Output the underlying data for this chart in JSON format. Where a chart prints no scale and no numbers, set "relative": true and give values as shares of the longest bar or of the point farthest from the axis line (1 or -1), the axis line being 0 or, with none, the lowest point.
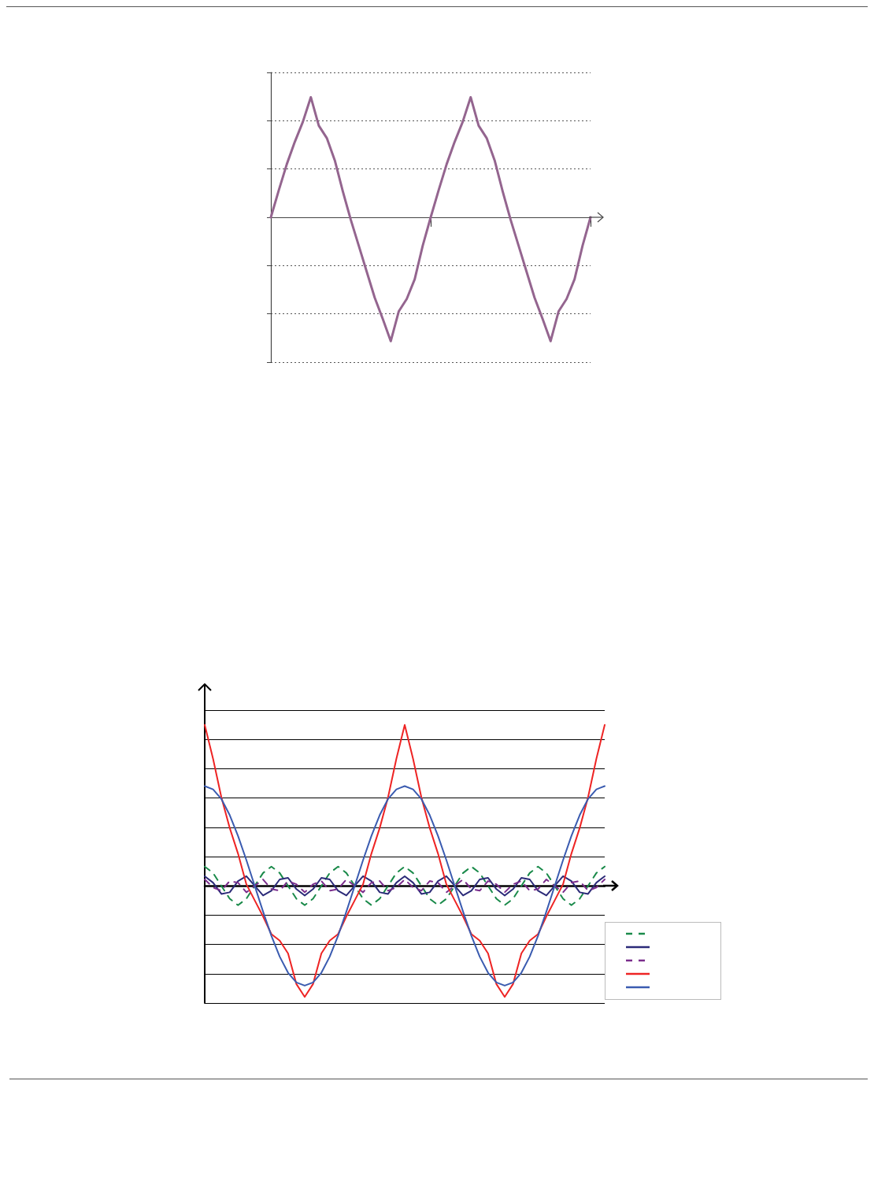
{
  "chart_data": [
    {
      "type": "line",
      "relative": true,
      "grid": "y",
      "marker": "none",
      "line_style": "solid",
      "categories": [
        null,
        null,
        null,
        null,
        null,
        null,
        null,
        null,
        null,
        null,
        null,
        null,
        null,
        null,
        null,
        null,
        null,
        null,
        null,
        null,
        null,
        null,
        null,
        null,
        null,
        null,
        null,
        null,
        null,
        null,
        null,
        null,
        null,
        null,
        null,
        null,
        null,
        null,
        null,
        null,
        null
      ],
      "series": [
        {
          "color": "#94658f",
          "values": [
            0,
            0.22,
            0.43,
            0.61,
            0.77,
            0.97,
            0.74,
            0.64,
            0.46,
            0.21,
            -0.02,
            -0.23,
            -0.44,
            -0.65,
            -0.82,
            -1,
            -0.76,
            -0.66,
            -0.5,
            -0.23,
            0,
            0.22,
            0.43,
            0.61,
            0.77,
            0.97,
            0.74,
            0.64,
            0.46,
            0.21,
            -0.02,
            -0.23,
            -0.44,
            -0.65,
            -0.82,
            -1,
            -0.76,
            -0.66,
            -0.5,
            -0.23,
            0
          ]
        }
      ]
    },
    {
      "type": "line",
      "relative": true,
      "grid": "y",
      "marker": "none",
      "categories": [
        null,
        null,
        null,
        null,
        null,
        null,
        null,
        null,
        null,
        null,
        null,
        null,
        null,
        null,
        null,
        null,
        null,
        null,
        null,
        null,
        null,
        null,
        null,
        null,
        null,
        null,
        null,
        null,
        null,
        null,
        null,
        null,
        null,
        null,
        null,
        null,
        null,
        null,
        null,
        null,
        null,
        null,
        null,
        null,
        null,
        null,
        null,
        null,
        null
      ],
      "series": [
        {
          "color": "#1a8a4a",
          "line_style": "dashed",
          "values": [
            0.12,
            0.08,
            0,
            -0.08,
            -0.12,
            -0.08,
            0,
            0.08,
            0.12,
            0.08,
            0,
            -0.08,
            -0.12,
            -0.08,
            0,
            0.08,
            0.12,
            0.08,
            0,
            -0.08,
            -0.12,
            -0.08,
            0,
            0.08,
            0.12,
            0.08,
            0,
            -0.08,
            -0.12,
            -0.08,
            0,
            0.08,
            0.12,
            0.08,
            0,
            -0.08,
            -0.12,
            -0.08,
            0,
            0.08,
            0.12,
            0.08,
            0,
            -0.08,
            -0.12,
            -0.08,
            0,
            0.08,
            0.12
          ]
        },
        {
          "color": "#2b2a78",
          "line_style": "solid",
          "values": [
            0.06,
            0.02,
            -0.05,
            -0.04,
            0.03,
            0.06,
            0,
            -0.06,
            -0.03,
            0.04,
            0.05,
            -0.02,
            -0.06,
            -0.02,
            0.05,
            0.04,
            -0.03,
            -0.06,
            0,
            0.06,
            0.03,
            -0.04,
            -0.05,
            0.02,
            0.06,
            0.02,
            -0.05,
            -0.04,
            0.03,
            0.06,
            0,
            -0.06,
            -0.03,
            0.04,
            0.05,
            -0.02,
            -0.06,
            -0.02,
            0.05,
            0.04,
            -0.03,
            -0.06,
            0,
            0.06,
            0.03,
            -0.04,
            -0.05,
            0.02,
            0.06
          ]
        },
        {
          "color": "#7a2d8c",
          "line_style": "dashed",
          "values": [
            0.04,
            -0.01,
            -0.03,
            0.03,
            0.02,
            -0.04,
            0,
            0.04,
            -0.02,
            -0.03,
            0.03,
            0.01,
            -0.04,
            0.01,
            0.03,
            -0.03,
            -0.02,
            0.04,
            0,
            -0.04,
            0.02,
            0.03,
            -0.03,
            -0.01,
            0.04,
            -0.01,
            -0.03,
            0.03,
            0.02,
            -0.04,
            0,
            0.04,
            -0.02,
            -0.03,
            0.03,
            0.01,
            -0.04,
            0.01,
            0.03,
            -0.03,
            -0.02,
            0.04,
            0,
            -0.04,
            0.02,
            0.03,
            -0.03,
            -0.01,
            0.04
          ]
        },
        {
          "color": "#ee2424",
          "line_style": "solid",
          "values": [
            1,
            0.79,
            0.55,
            0.36,
            0.2,
            0.01,
            -0.09,
            -0.19,
            -0.3,
            -0.34,
            -0.42,
            -0.61,
            -0.69,
            -0.61,
            -0.42,
            -0.34,
            -0.3,
            -0.19,
            -0.09,
            0.01,
            0.2,
            0.36,
            0.55,
            0.79,
            1,
            0.79,
            0.55,
            0.36,
            0.2,
            0.01,
            -0.09,
            -0.19,
            -0.3,
            -0.34,
            -0.42,
            -0.61,
            -0.69,
            -0.61,
            -0.42,
            -0.34,
            -0.3,
            -0.19,
            -0.09,
            0.01,
            0.2,
            0.36,
            0.55,
            0.79,
            1
          ]
        },
        {
          "color": "#3a5bb0",
          "line_style": "solid",
          "values": [
            0.62,
            0.6,
            0.54,
            0.44,
            0.31,
            0.16,
            0,
            -0.16,
            -0.31,
            -0.44,
            -0.54,
            -0.6,
            -0.62,
            -0.6,
            -0.54,
            -0.44,
            -0.31,
            -0.16,
            0,
            0.16,
            0.31,
            0.44,
            0.54,
            0.6,
            0.62,
            0.6,
            0.54,
            0.44,
            0.31,
            0.16,
            0,
            -0.16,
            -0.31,
            -0.44,
            -0.54,
            -0.6,
            -0.62,
            -0.6,
            -0.54,
            -0.44,
            -0.31,
            -0.16,
            0,
            0.16,
            0.31,
            0.44,
            0.54,
            0.6,
            0.62
          ]
        }
      ]
    }
  ]
}
